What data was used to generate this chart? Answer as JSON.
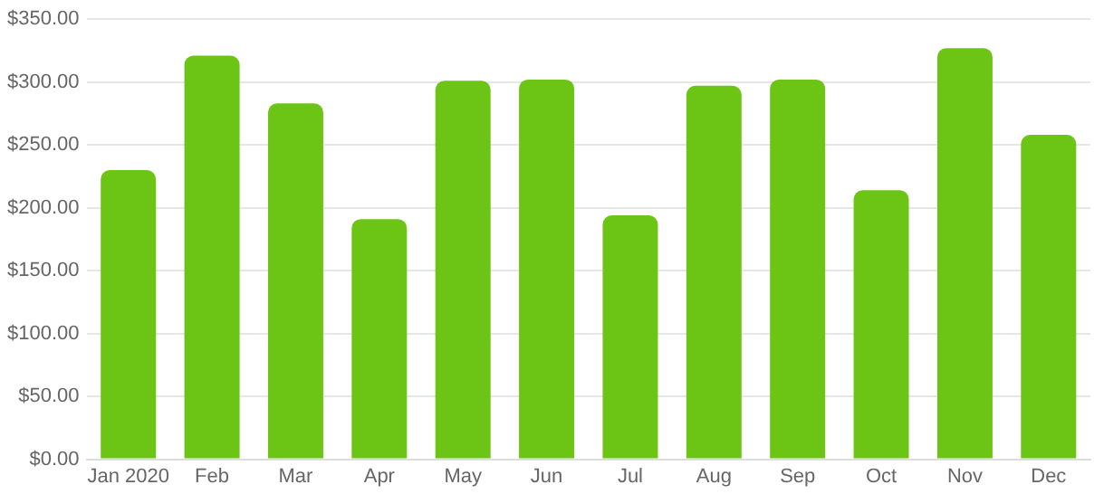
{
  "chart_data": {
    "type": "bar",
    "categories": [
      "Jan 2020",
      "Feb",
      "Mar",
      "Apr",
      "May",
      "Jun",
      "Jul",
      "Aug",
      "Sep",
      "Oct",
      "Nov",
      "Dec"
    ],
    "values": [
      230,
      321,
      283,
      191,
      301,
      302,
      194,
      297,
      302,
      214,
      327,
      258
    ],
    "color": "#6cc414",
    "ylim": [
      0,
      350
    ],
    "yticks": [
      {
        "value": 0,
        "label": "$0.00"
      },
      {
        "value": 50,
        "label": "$50.00"
      },
      {
        "value": 100,
        "label": "$100.00"
      },
      {
        "value": 150,
        "label": "$150.00"
      },
      {
        "value": 200,
        "label": "$200.00"
      },
      {
        "value": 250,
        "label": "$250.00"
      },
      {
        "value": 300,
        "label": "$300.00"
      },
      {
        "value": 350,
        "label": "$350.00"
      }
    ],
    "grid": "y",
    "legend": false
  }
}
